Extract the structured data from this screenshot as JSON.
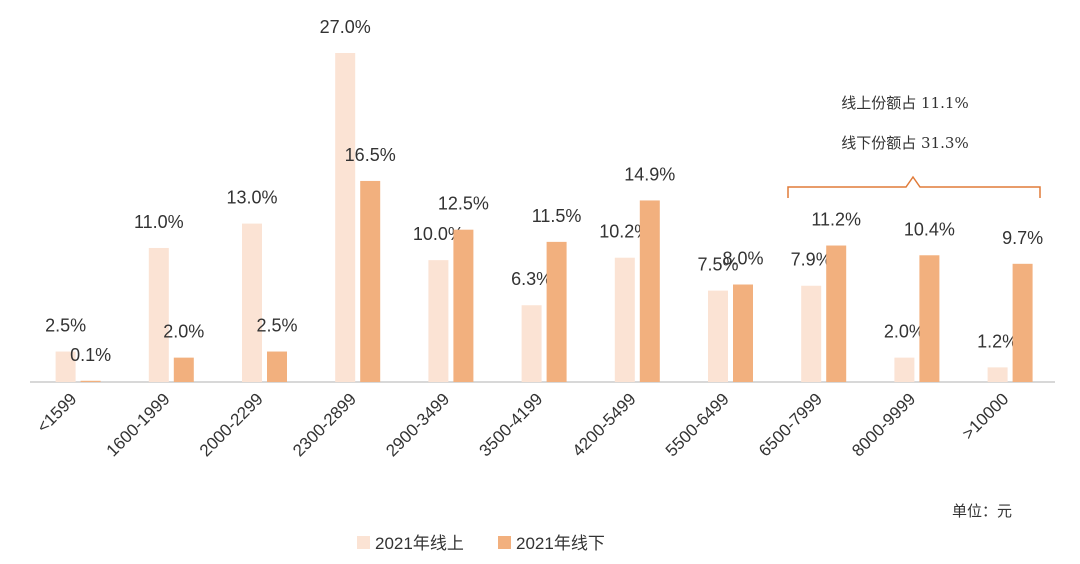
{
  "chart_data": {
    "type": "bar",
    "categories": [
      "<1599",
      "1600-1999",
      "2000-2299",
      "2300-2899",
      "2900-3499",
      "3500-4199",
      "4200-5499",
      "5500-6499",
      "6500-7999",
      "8000-9999",
      ">10000"
    ],
    "series": [
      {
        "name": "2021年线上",
        "color": "#fbe3d4",
        "values": [
          2.5,
          11.0,
          13.0,
          27.0,
          10.0,
          6.3,
          10.2,
          7.5,
          7.9,
          2.0,
          1.2
        ],
        "value_labels": [
          "2.5%",
          "11.0%",
          "13.0%",
          "27.0%",
          "10.0%",
          "6.3%",
          "10.2%",
          "7.5%",
          "7.9%",
          "2.0%",
          "1.2%"
        ]
      },
      {
        "name": "2021年线下",
        "color": "#f2b07e",
        "values": [
          0.1,
          2.0,
          2.5,
          16.5,
          12.5,
          11.5,
          14.9,
          8.0,
          11.2,
          10.4,
          9.7
        ],
        "value_labels": [
          "0.1%",
          "2.0%",
          "2.5%",
          "16.5%",
          "12.5%",
          "11.5%",
          "14.9%",
          "8.0%",
          "11.2%",
          "10.4%",
          "9.7%"
        ]
      }
    ],
    "annotations": [
      "线上份额占 11.1%",
      "线下份额占 31.3%"
    ],
    "unit_note": "单位：元"
  }
}
